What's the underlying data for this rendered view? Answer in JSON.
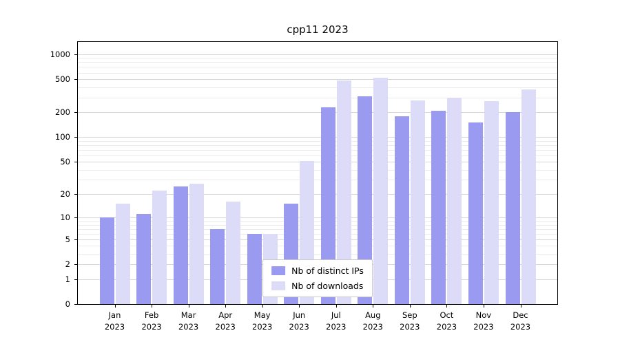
{
  "chart_data": {
    "type": "bar",
    "title": "cpp11 2023",
    "xlabel": "",
    "ylabel": "",
    "scale": "log1p",
    "grid": true,
    "legend_position": "lower center",
    "year": "2023",
    "categories": [
      "Jan",
      "Feb",
      "Mar",
      "Apr",
      "May",
      "Jun",
      "Jul",
      "Aug",
      "Sep",
      "Oct",
      "Nov",
      "Dec"
    ],
    "series": [
      {
        "name": "Nb of distinct IPs",
        "color": "#9a9af0",
        "values": [
          10,
          11,
          25,
          7,
          6,
          15,
          230,
          310,
          180,
          210,
          150,
          200
        ]
      },
      {
        "name": "Nb of downloads",
        "color": "#dcdcf8",
        "values": [
          15,
          22,
          27,
          16,
          6,
          51,
          480,
          520,
          280,
          300,
          270,
          380
        ]
      }
    ],
    "yticks": [
      0,
      1,
      2,
      5,
      10,
      20,
      50,
      100,
      200,
      500,
      1000
    ],
    "minor_yticks": [
      3,
      4,
      6,
      7,
      8,
      9,
      30,
      40,
      60,
      70,
      80,
      90,
      300,
      400,
      600,
      700,
      800,
      900
    ],
    "ylim": [
      0,
      1400
    ]
  }
}
